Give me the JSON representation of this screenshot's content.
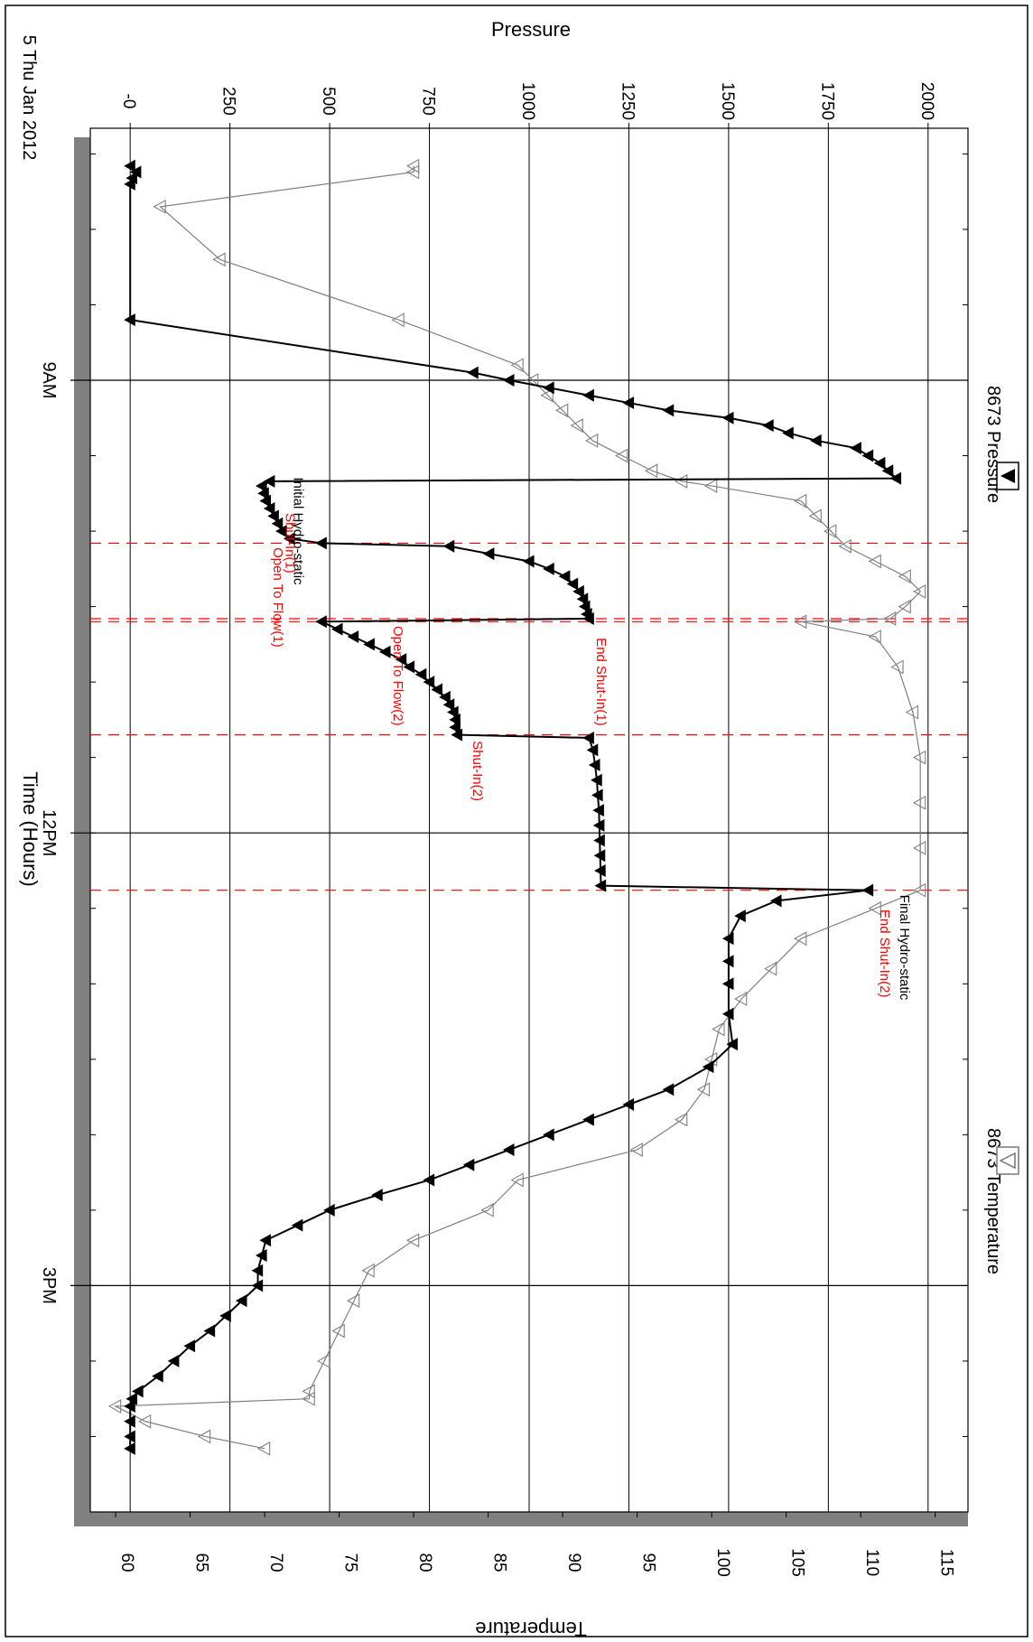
{
  "chart_data": {
    "type": "line",
    "date_label": "5 Thu Jan 2012",
    "xlabel": "Time (Hours)",
    "pressure_axis_label": "Pressure",
    "temperature_axis_label": "Temperature",
    "pressure_ticks": [
      "-0",
      "250",
      "500",
      "750",
      "1000",
      "1250",
      "1500",
      "1750",
      "2000"
    ],
    "pressure_tick_values": [
      0,
      250,
      500,
      750,
      1000,
      1250,
      1500,
      1750,
      2000
    ],
    "temperature_ticks": [
      "60",
      "65",
      "70",
      "75",
      "80",
      "85",
      "90",
      "95",
      "100",
      "105",
      "110",
      "115"
    ],
    "temperature_tick_values": [
      60,
      65,
      70,
      75,
      80,
      85,
      90,
      95,
      100,
      105,
      110,
      115
    ],
    "time_ticks": [
      "9AM",
      "12PM",
      "3PM"
    ],
    "time_tick_values": [
      9,
      12,
      15
    ],
    "time_range": [
      7.33,
      16.5
    ],
    "pressure_range": [
      -100,
      2100
    ],
    "temperature_range": [
      58.3,
      117.2
    ],
    "grid": true,
    "legend": [
      {
        "name": "8673 Pressure",
        "marker": "filled-triangle",
        "position": "top-left"
      },
      {
        "name": "8673 Temperature",
        "marker": "open-triangle",
        "position": "top-right"
      }
    ],
    "events": [
      {
        "time": 9.67,
        "label": "Initial Hydro-static",
        "color": "#000000"
      },
      {
        "time": 10.08,
        "label": "Open To Flow(1)",
        "color": "#ff0000"
      },
      {
        "time": 10.08,
        "label": "Shut-In(1)",
        "color": "#ff0000"
      },
      {
        "time": 10.58,
        "label": "End Shut-In(1)",
        "color": "#ff0000"
      },
      {
        "time": 10.6,
        "label": "Open To Flow(2)",
        "color": "#ff0000"
      },
      {
        "time": 11.35,
        "label": "Shut-In(2)",
        "color": "#ff0000"
      },
      {
        "time": 12.38,
        "label": "End Shut-In(2)",
        "color": "#ff0000"
      },
      {
        "time": 12.4,
        "label": "Final Hydro-static",
        "color": "#000000"
      }
    ],
    "series": [
      {
        "name": "8673 Pressure",
        "color": "#000000",
        "x": [
          7.58,
          7.62,
          7.66,
          7.7,
          8.6,
          8.95,
          9.0,
          9.05,
          9.1,
          9.15,
          9.2,
          9.25,
          9.3,
          9.35,
          9.4,
          9.45,
          9.5,
          9.55,
          9.6,
          9.65,
          9.67,
          9.7,
          9.75,
          9.8,
          9.85,
          9.9,
          9.95,
          10.0,
          10.05,
          10.08,
          10.1,
          10.15,
          10.2,
          10.25,
          10.3,
          10.35,
          10.4,
          10.45,
          10.5,
          10.55,
          10.58,
          10.6,
          10.65,
          10.7,
          10.75,
          10.8,
          10.85,
          10.9,
          10.95,
          11.0,
          11.05,
          11.1,
          11.15,
          11.2,
          11.25,
          11.3,
          11.35,
          11.37,
          11.45,
          11.55,
          11.65,
          11.75,
          11.85,
          11.95,
          12.05,
          12.15,
          12.25,
          12.35,
          12.38,
          12.45,
          12.55,
          12.7,
          12.85,
          13.0,
          13.2,
          13.4,
          13.55,
          13.7,
          13.8,
          13.9,
          14.0,
          14.1,
          14.2,
          14.3,
          14.4,
          14.5,
          14.6,
          14.7,
          14.8,
          14.9,
          15.0,
          15.1,
          15.2,
          15.3,
          15.4,
          15.5,
          15.6,
          15.7,
          15.75,
          15.8,
          15.9,
          16.0,
          16.08
        ],
        "values": [
          0,
          15,
          5,
          0,
          0,
          860,
          950,
          1050,
          1150,
          1250,
          1350,
          1500,
          1600,
          1650,
          1720,
          1820,
          1850,
          1880,
          1900,
          1920,
          350,
          330,
          335,
          340,
          350,
          360,
          370,
          380,
          400,
          480,
          800,
          900,
          1000,
          1050,
          1090,
          1110,
          1125,
          1135,
          1140,
          1145,
          1150,
          480,
          520,
          560,
          600,
          640,
          680,
          700,
          730,
          750,
          770,
          790,
          800,
          810,
          815,
          815,
          820,
          1150,
          1160,
          1165,
          1170,
          1172,
          1175,
          1176,
          1177,
          1178,
          1179,
          1180,
          1850,
          1620,
          1530,
          1500,
          1500,
          1500,
          1500,
          1510,
          1450,
          1350,
          1250,
          1150,
          1050,
          950,
          850,
          750,
          620,
          500,
          420,
          340,
          330,
          320,
          320,
          280,
          240,
          200,
          150,
          110,
          70,
          20,
          5,
          0,
          0,
          0,
          0
        ]
      },
      {
        "name": "8673 Temperature",
        "color": "#808080",
        "x": [
          7.58,
          7.62,
          7.85,
          8.2,
          8.6,
          8.9,
          9.0,
          9.1,
          9.2,
          9.3,
          9.4,
          9.5,
          9.6,
          9.67,
          9.7,
          9.8,
          9.9,
          10.0,
          10.1,
          10.2,
          10.3,
          10.4,
          10.5,
          10.58,
          10.6,
          10.7,
          10.9,
          11.2,
          11.5,
          11.8,
          12.1,
          12.38,
          12.5,
          12.7,
          12.9,
          13.1,
          13.3,
          13.5,
          13.7,
          13.9,
          14.1,
          14.3,
          14.5,
          14.7,
          14.9,
          15.1,
          15.3,
          15.5,
          15.7,
          15.75,
          15.8,
          15.9,
          16.0,
          16.08
        ],
        "values": [
          80,
          80,
          63,
          67,
          79,
          87,
          88,
          89,
          90,
          91,
          92,
          94,
          96,
          98,
          100,
          106,
          107,
          108,
          109,
          111,
          113,
          114,
          113,
          112,
          106,
          111,
          112.5,
          113.5,
          114,
          114,
          114,
          114,
          111,
          106,
          104,
          102,
          100.5,
          100,
          99.5,
          98,
          95,
          87,
          85,
          80,
          77,
          76,
          75,
          74,
          73,
          73,
          60,
          62,
          66,
          70
        ]
      }
    ]
  }
}
